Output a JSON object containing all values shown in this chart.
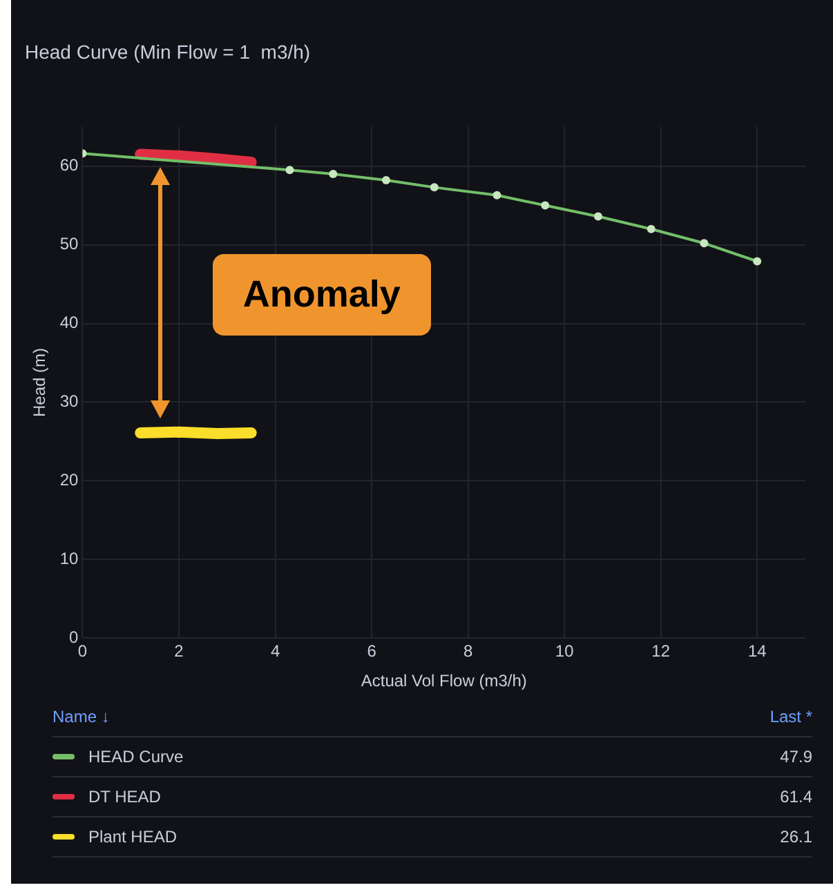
{
  "chart_data": {
    "type": "line",
    "title": "Head Curve (Min Flow = 1  m3/h)",
    "xlabel": "Actual Vol Flow (m3/h)",
    "ylabel": "Head (m)",
    "xlim": [
      0,
      15
    ],
    "xticks": [
      0,
      2,
      4,
      6,
      8,
      10,
      12,
      14
    ],
    "ylim": [
      0,
      65
    ],
    "yticks": [
      0,
      10,
      20,
      30,
      40,
      50,
      60
    ],
    "grid": true,
    "legend": "bottom",
    "line_style": "solid",
    "series": [
      {
        "name": "HEAD Curve",
        "color": "#73bf69",
        "marker": "circle",
        "x": [
          0,
          4.3,
          5.2,
          6.3,
          7.3,
          8.6,
          9.6,
          10.7,
          11.8,
          12.9,
          14
        ],
        "values": [
          61.6,
          59.5,
          59,
          58.2,
          57.3,
          56.3,
          55,
          53.6,
          52,
          50.2,
          47.9
        ]
      },
      {
        "name": "DT  HEAD",
        "color": "#e02f44",
        "marker": "none",
        "x": [
          1.2,
          2,
          2.8,
          3.5
        ],
        "values": [
          61.5,
          61.3,
          60.9,
          60.5
        ]
      },
      {
        "name": "Plant HEAD",
        "color": "#fade2a",
        "marker": "none",
        "x": [
          1.2,
          2,
          2.8,
          3.5
        ],
        "values": [
          26.1,
          26.2,
          26,
          26.1
        ]
      }
    ],
    "annotations": [
      "Anomaly",
      "Name ↓",
      "Last *",
      "47.9",
      "61.4",
      "26.1"
    ]
  }
}
